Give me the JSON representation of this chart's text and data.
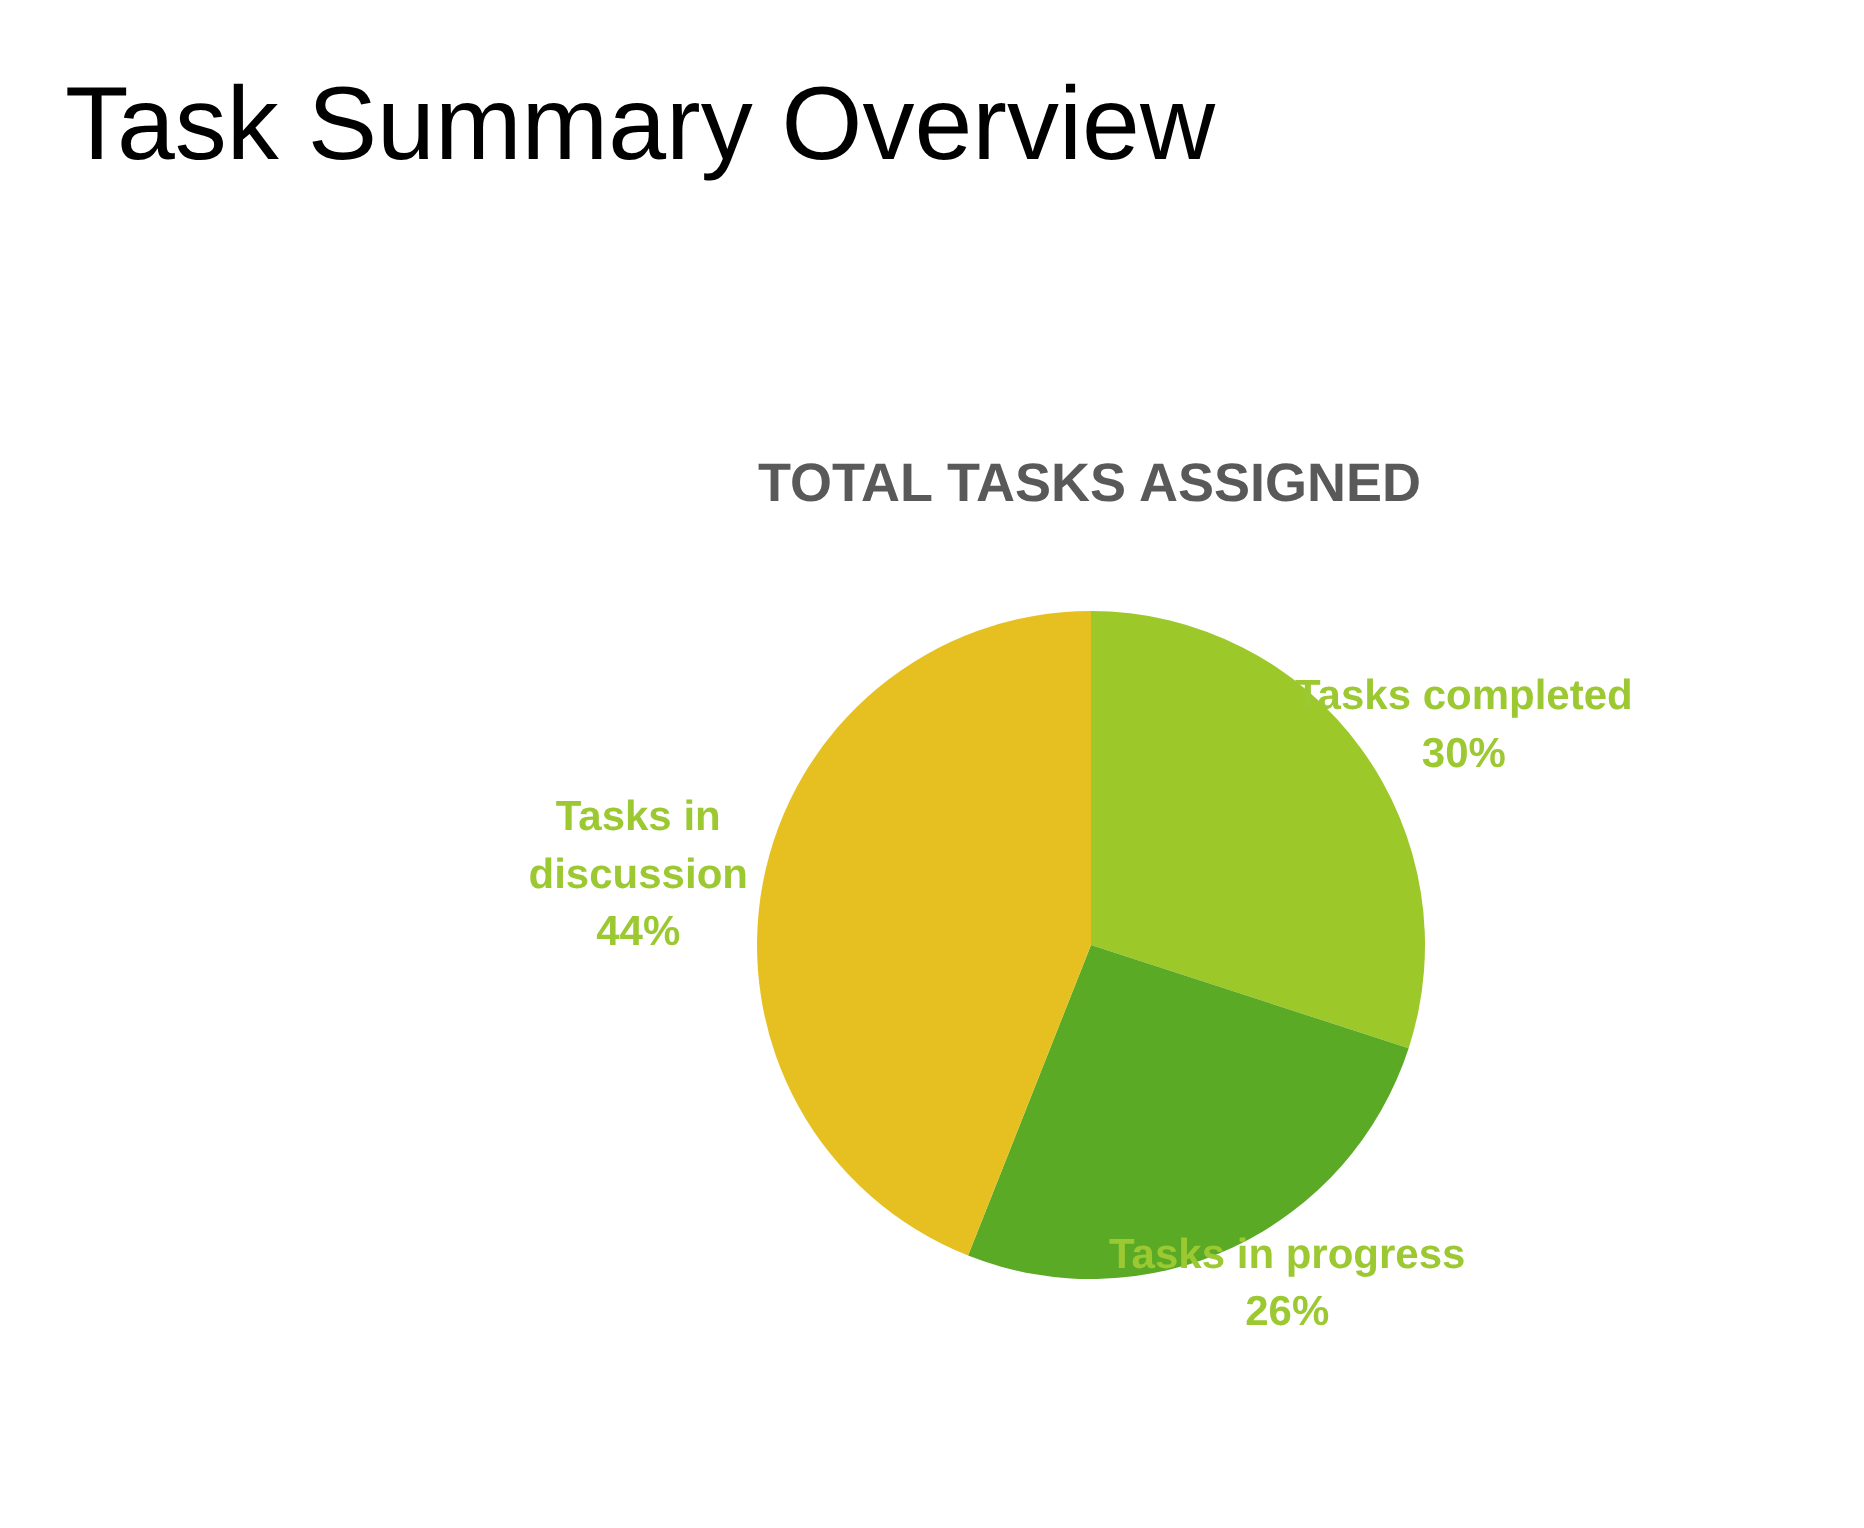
{
  "chart_data": {
    "type": "pie",
    "title": "Task Summary Overview",
    "subtitle": "TOTAL TASKS ASSIGNED",
    "categories": [
      "Tasks completed",
      "Tasks in progress",
      "Tasks in discussion"
    ],
    "values": [
      30,
      26,
      44
    ],
    "colors": [
      "#9cc82a",
      "#5aaa26",
      "#e6c021"
    ],
    "value_labels": [
      "30%",
      "26%",
      "44%"
    ]
  }
}
